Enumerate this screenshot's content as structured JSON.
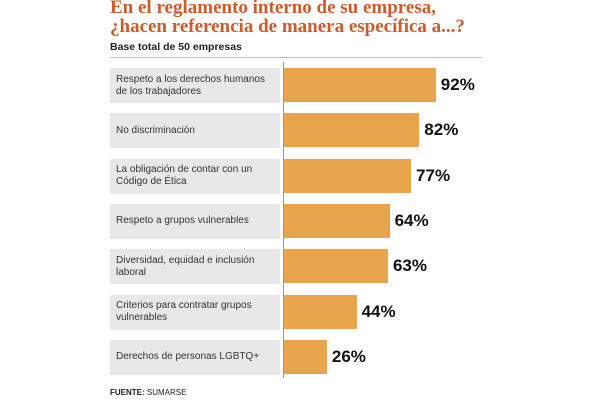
{
  "chart_data": {
    "type": "bar",
    "orientation": "horizontal",
    "title_lines": [
      "En el reglamento interno de su empresa,",
      "¿hacen referencia de manera específica a...?"
    ],
    "subtitle": "Base total de 50 empresas",
    "categories": [
      "Respeto a los derechos humanos de los trabajadores",
      "No discriminación",
      "La obligación de contar con un Código de Ética",
      "Respeto a grupos vulnerables",
      "Diversidad, equidad e inclusión laboral",
      "Criterios para contratar grupos vulnerables",
      "Derechos de personas LGBTQ+"
    ],
    "values": [
      92,
      82,
      77,
      64,
      63,
      44,
      26
    ],
    "value_labels": [
      "92%",
      "82%",
      "77%",
      "64%",
      "63%",
      "44%",
      "26%"
    ],
    "color": "#e8a54b",
    "xlim": [
      0,
      100
    ],
    "source_label": "FUENTE:",
    "source": "SUMARSE"
  }
}
